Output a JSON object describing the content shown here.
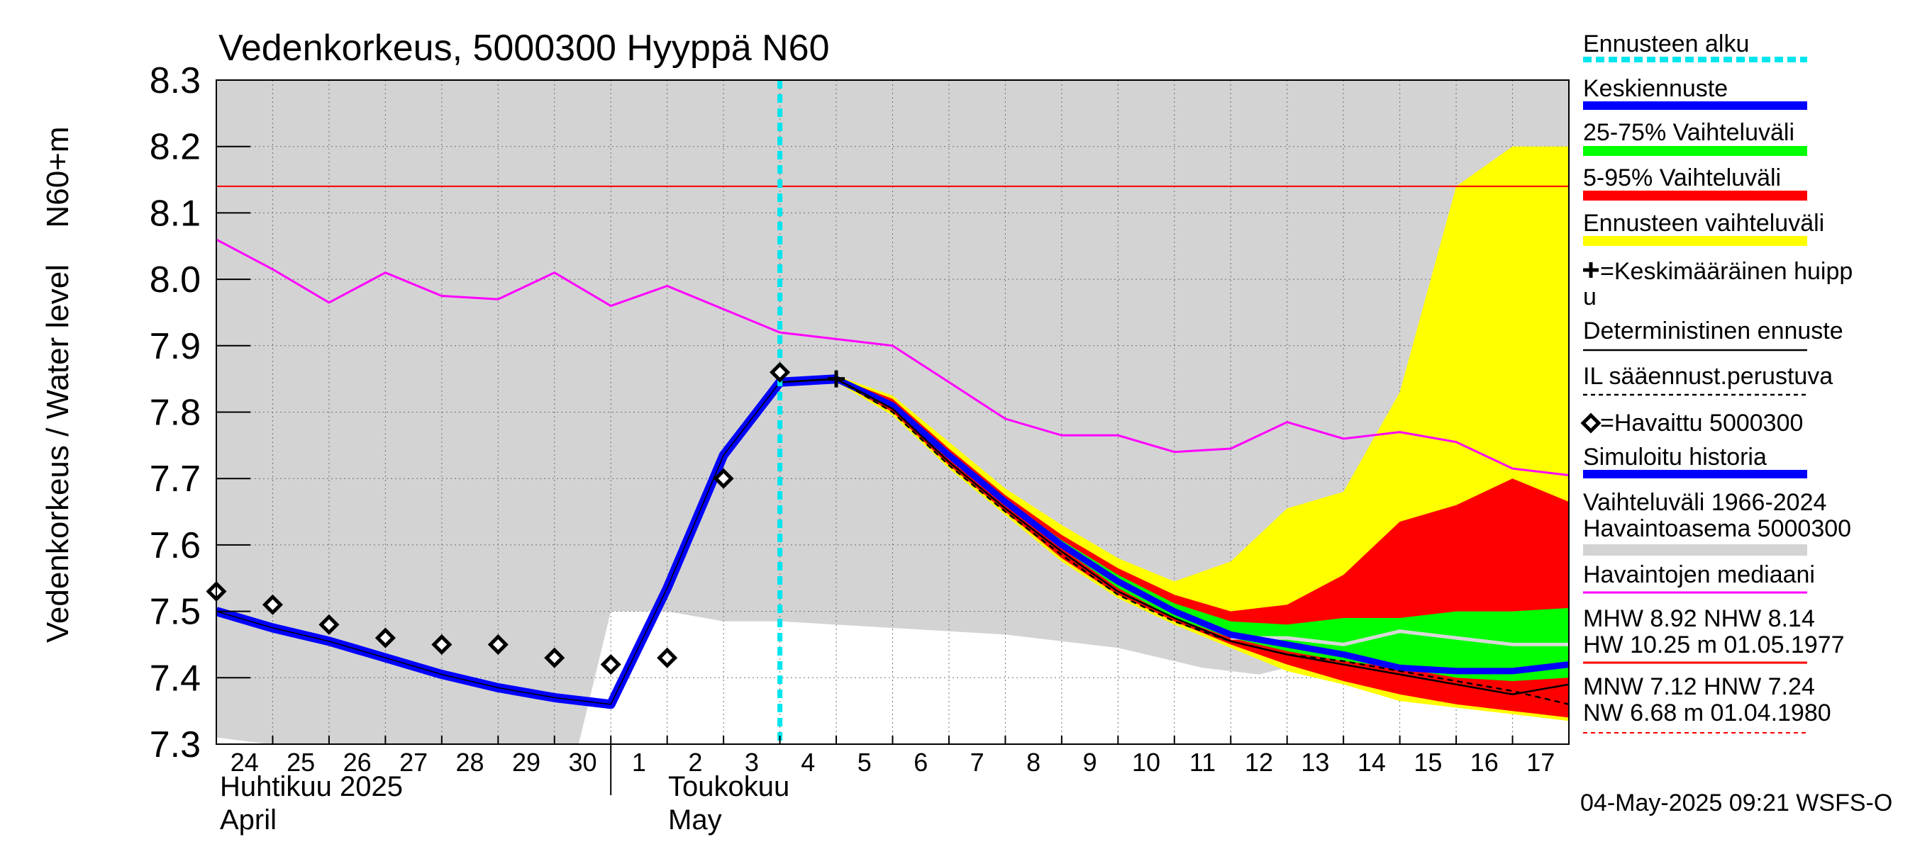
{
  "chart_data": {
    "type": "line",
    "title": "Vedenkorkeus, 5000300 Hyyppä N60",
    "ylabel_primary": "Vedenkorkeus / Water level",
    "ylabel_unit": "N60+m",
    "ylim": [
      7.3,
      8.3
    ],
    "yticks": [
      "7.3",
      "7.4",
      "7.5",
      "7.6",
      "7.7",
      "7.8",
      "7.9",
      "8.0",
      "8.1",
      "8.2",
      "8.3"
    ],
    "x_start_day": "24.4.2025",
    "xlim_days": [
      0,
      24
    ],
    "x_tick_labels": [
      "24",
      "25",
      "26",
      "27",
      "28",
      "29",
      "30",
      "1",
      "2",
      "3",
      "4",
      "5",
      "6",
      "7",
      "8",
      "9",
      "10",
      "11",
      "12",
      "13",
      "14",
      "15",
      "16",
      "17"
    ],
    "month_labels": [
      {
        "fi": "Huhtikuu  2025",
        "en": "April"
      },
      {
        "fi": "Toukokuu",
        "en": "May"
      }
    ],
    "forecast_start_day": 10,
    "hw_reference_level": 8.14,
    "history_band": {
      "upper": [
        [
          0,
          8.3
        ],
        [
          24,
          8.3
        ]
      ],
      "lower": [
        [
          0,
          7.31
        ],
        [
          1.9,
          7.29
        ],
        [
          6.4,
          7.29
        ],
        [
          7,
          7.5
        ],
        [
          8,
          7.5
        ],
        [
          9,
          7.485
        ],
        [
          10,
          7.485
        ],
        [
          12,
          7.475
        ],
        [
          14,
          7.465
        ],
        [
          16,
          7.445
        ],
        [
          17.5,
          7.415
        ],
        [
          18.5,
          7.405
        ],
        [
          19.5,
          7.425
        ],
        [
          20.5,
          7.45
        ],
        [
          21.5,
          7.47
        ],
        [
          22.5,
          7.49
        ],
        [
          24,
          7.49
        ]
      ]
    },
    "series": [
      {
        "name": "Havaintojen mediaani",
        "points": [
          [
            0,
            8.06
          ],
          [
            1,
            8.015
          ],
          [
            2,
            7.965
          ],
          [
            3,
            8.01
          ],
          [
            4,
            7.975
          ],
          [
            5,
            7.97
          ],
          [
            6,
            8.01
          ],
          [
            7,
            7.96
          ],
          [
            8,
            7.99
          ],
          [
            9,
            7.955
          ],
          [
            10,
            7.92
          ],
          [
            11,
            7.91
          ],
          [
            12,
            7.9
          ],
          [
            13,
            7.845
          ],
          [
            14,
            7.79
          ],
          [
            15,
            7.765
          ],
          [
            16,
            7.765
          ],
          [
            17,
            7.74
          ],
          [
            18,
            7.745
          ],
          [
            19,
            7.785
          ],
          [
            20,
            7.76
          ],
          [
            21,
            7.77
          ],
          [
            22,
            7.755
          ],
          [
            23,
            7.715
          ],
          [
            24,
            7.705
          ]
        ]
      },
      {
        "name": "Simuloitu historia",
        "points": [
          [
            0,
            7.5
          ],
          [
            1,
            7.475
          ],
          [
            2,
            7.455
          ],
          [
            3,
            7.43
          ],
          [
            4,
            7.405
          ],
          [
            5,
            7.385
          ],
          [
            6,
            7.37
          ],
          [
            7,
            7.36
          ],
          [
            8,
            7.535
          ],
          [
            9,
            7.735
          ],
          [
            10,
            7.845
          ],
          [
            11,
            7.85
          ]
        ]
      },
      {
        "name": "Keskiennuste",
        "points": [
          [
            10,
            7.845
          ],
          [
            11,
            7.85
          ],
          [
            12,
            7.81
          ],
          [
            13,
            7.735
          ],
          [
            14,
            7.665
          ],
          [
            15,
            7.6
          ],
          [
            16,
            7.545
          ],
          [
            17,
            7.5
          ],
          [
            18,
            7.465
          ],
          [
            19,
            7.45
          ],
          [
            20,
            7.435
          ],
          [
            21,
            7.415
          ],
          [
            22,
            7.41
          ],
          [
            23,
            7.41
          ],
          [
            24,
            7.42
          ]
        ]
      },
      {
        "name": "Deterministinen ennuste",
        "points": [
          [
            10,
            7.845
          ],
          [
            11,
            7.85
          ],
          [
            12,
            7.805
          ],
          [
            13,
            7.725
          ],
          [
            14,
            7.655
          ],
          [
            15,
            7.59
          ],
          [
            16,
            7.53
          ],
          [
            17,
            7.49
          ],
          [
            18,
            7.455
          ],
          [
            19,
            7.435
          ],
          [
            20,
            7.42
          ],
          [
            21,
            7.405
          ],
          [
            22,
            7.39
          ],
          [
            23,
            7.375
          ],
          [
            24,
            7.39
          ]
        ]
      },
      {
        "name": "IL sääennust.perustuva",
        "points": [
          [
            10,
            7.845
          ],
          [
            11,
            7.85
          ],
          [
            12,
            7.8
          ],
          [
            13,
            7.72
          ],
          [
            14,
            7.65
          ],
          [
            15,
            7.585
          ],
          [
            16,
            7.525
          ],
          [
            17,
            7.485
          ],
          [
            18,
            7.455
          ],
          [
            19,
            7.435
          ],
          [
            20,
            7.425
          ],
          [
            21,
            7.41
          ],
          [
            22,
            7.395
          ],
          [
            23,
            7.38
          ],
          [
            24,
            7.36
          ]
        ]
      }
    ],
    "median_forecast_light": [
      [
        18,
        7.46
      ],
      [
        19,
        7.46
      ],
      [
        20,
        7.45
      ],
      [
        21,
        7.47
      ],
      [
        22,
        7.46
      ],
      [
        23,
        7.45
      ],
      [
        24,
        7.45
      ]
    ],
    "bands": {
      "ennusteen_vaihteluvali": {
        "upper": [
          [
            10,
            7.845
          ],
          [
            11,
            7.855
          ],
          [
            12,
            7.825
          ],
          [
            13,
            7.755
          ],
          [
            14,
            7.685
          ],
          [
            15,
            7.63
          ],
          [
            16,
            7.58
          ],
          [
            17,
            7.545
          ],
          [
            18,
            7.575
          ],
          [
            19,
            7.655
          ],
          [
            20,
            7.68
          ],
          [
            21,
            7.83
          ],
          [
            22,
            8.14
          ],
          [
            23,
            8.2
          ],
          [
            24,
            8.2
          ]
        ],
        "lower": [
          [
            10,
            7.845
          ],
          [
            11,
            7.845
          ],
          [
            12,
            7.795
          ],
          [
            13,
            7.715
          ],
          [
            14,
            7.645
          ],
          [
            15,
            7.575
          ],
          [
            16,
            7.52
          ],
          [
            17,
            7.48
          ],
          [
            18,
            7.445
          ],
          [
            19,
            7.41
          ],
          [
            20,
            7.39
          ],
          [
            21,
            7.365
          ],
          [
            22,
            7.355
          ],
          [
            23,
            7.345
          ],
          [
            24,
            7.335
          ]
        ]
      },
      "vaihteluvali_5_95": {
        "upper": [
          [
            10,
            7.845
          ],
          [
            11,
            7.852
          ],
          [
            12,
            7.82
          ],
          [
            13,
            7.745
          ],
          [
            14,
            7.675
          ],
          [
            15,
            7.615
          ],
          [
            16,
            7.565
          ],
          [
            17,
            7.525
          ],
          [
            18,
            7.5
          ],
          [
            19,
            7.51
          ],
          [
            20,
            7.555
          ],
          [
            21,
            7.635
          ],
          [
            22,
            7.66
          ],
          [
            23,
            7.7
          ],
          [
            24,
            7.665
          ]
        ],
        "lower": [
          [
            10,
            7.845
          ],
          [
            11,
            7.847
          ],
          [
            12,
            7.8
          ],
          [
            13,
            7.72
          ],
          [
            14,
            7.65
          ],
          [
            15,
            7.58
          ],
          [
            16,
            7.525
          ],
          [
            17,
            7.485
          ],
          [
            18,
            7.45
          ],
          [
            19,
            7.42
          ],
          [
            20,
            7.395
          ],
          [
            21,
            7.375
          ],
          [
            22,
            7.36
          ],
          [
            23,
            7.35
          ],
          [
            24,
            7.34
          ]
        ]
      },
      "vaihteluvali_25_75": {
        "upper": [
          [
            10,
            7.845
          ],
          [
            11,
            7.85
          ],
          [
            12,
            7.812
          ],
          [
            13,
            7.738
          ],
          [
            14,
            7.668
          ],
          [
            15,
            7.607
          ],
          [
            16,
            7.555
          ],
          [
            17,
            7.512
          ],
          [
            18,
            7.485
          ],
          [
            19,
            7.48
          ],
          [
            20,
            7.49
          ],
          [
            21,
            7.49
          ],
          [
            22,
            7.5
          ],
          [
            23,
            7.5
          ],
          [
            24,
            7.505
          ]
        ],
        "lower": [
          [
            10,
            7.845
          ],
          [
            11,
            7.848
          ],
          [
            12,
            7.806
          ],
          [
            13,
            7.73
          ],
          [
            14,
            7.66
          ],
          [
            15,
            7.595
          ],
          [
            16,
            7.535
          ],
          [
            17,
            7.49
          ],
          [
            18,
            7.46
          ],
          [
            19,
            7.44
          ],
          [
            20,
            7.425
          ],
          [
            21,
            7.415
          ],
          [
            22,
            7.4
          ],
          [
            23,
            7.395
          ],
          [
            24,
            7.4
          ]
        ]
      }
    },
    "observed": {
      "name": "Havaittu 5000300",
      "points": [
        [
          0,
          7.53
        ],
        [
          1,
          7.51
        ],
        [
          2,
          7.48
        ],
        [
          3,
          7.46
        ],
        [
          4,
          7.45
        ],
        [
          5,
          7.45
        ],
        [
          6,
          7.43
        ],
        [
          7,
          7.42
        ],
        [
          8,
          7.43
        ],
        [
          9,
          7.7
        ],
        [
          10,
          7.86
        ]
      ]
    },
    "mean_peak": {
      "x": 11,
      "y": 7.85
    },
    "legend": {
      "forecast_start": "Ennusteen alku",
      "mean_forecast": "Keskiennuste",
      "range_25_75": "25-75% Vaihteluväli",
      "range_5_95": "5-95% Vaihteluväli",
      "forecast_range": "Ennusteen vaihteluväli",
      "mean_peak_line1": "=Keskimääräinen huipp",
      "mean_peak_line2": "u",
      "deterministic": "Deterministinen ennuste",
      "il_forecast": "IL sääennust.perustuva",
      "observed": "=Havaittu 5000300",
      "simulated": "Simuloitu historia",
      "hist_range_line1": "Vaihteluväli 1966-2024",
      "hist_range_line2": " Havaintoasema 5000300",
      "median": "Havaintojen mediaani",
      "stats_high_1": "MHW   8.92 NHW   8.14",
      "stats_high_2": "HW  10.25 m 01.05.1977",
      "stats_low_1": "MNW   7.12 HNW   7.24",
      "stats_low_2": "NW   6.68 m 01.04.1980"
    },
    "timestamp": "04-May-2025 09:21 WSFS-O",
    "colors": {
      "hist_band": "#d3d3d3",
      "median": "#ff00ff",
      "hw_line": "#ff0000",
      "simulated": "#0000ff",
      "mean_forecast": "#0000ff",
      "range_25_75": "#00ff00",
      "range_5_95": "#ff0000",
      "forecast_range": "#ffff00",
      "forecast_start": "#00e5ee",
      "grid": "#707070",
      "deterministic": "#000000",
      "median_forecast_light": "#d8d8d8"
    }
  }
}
